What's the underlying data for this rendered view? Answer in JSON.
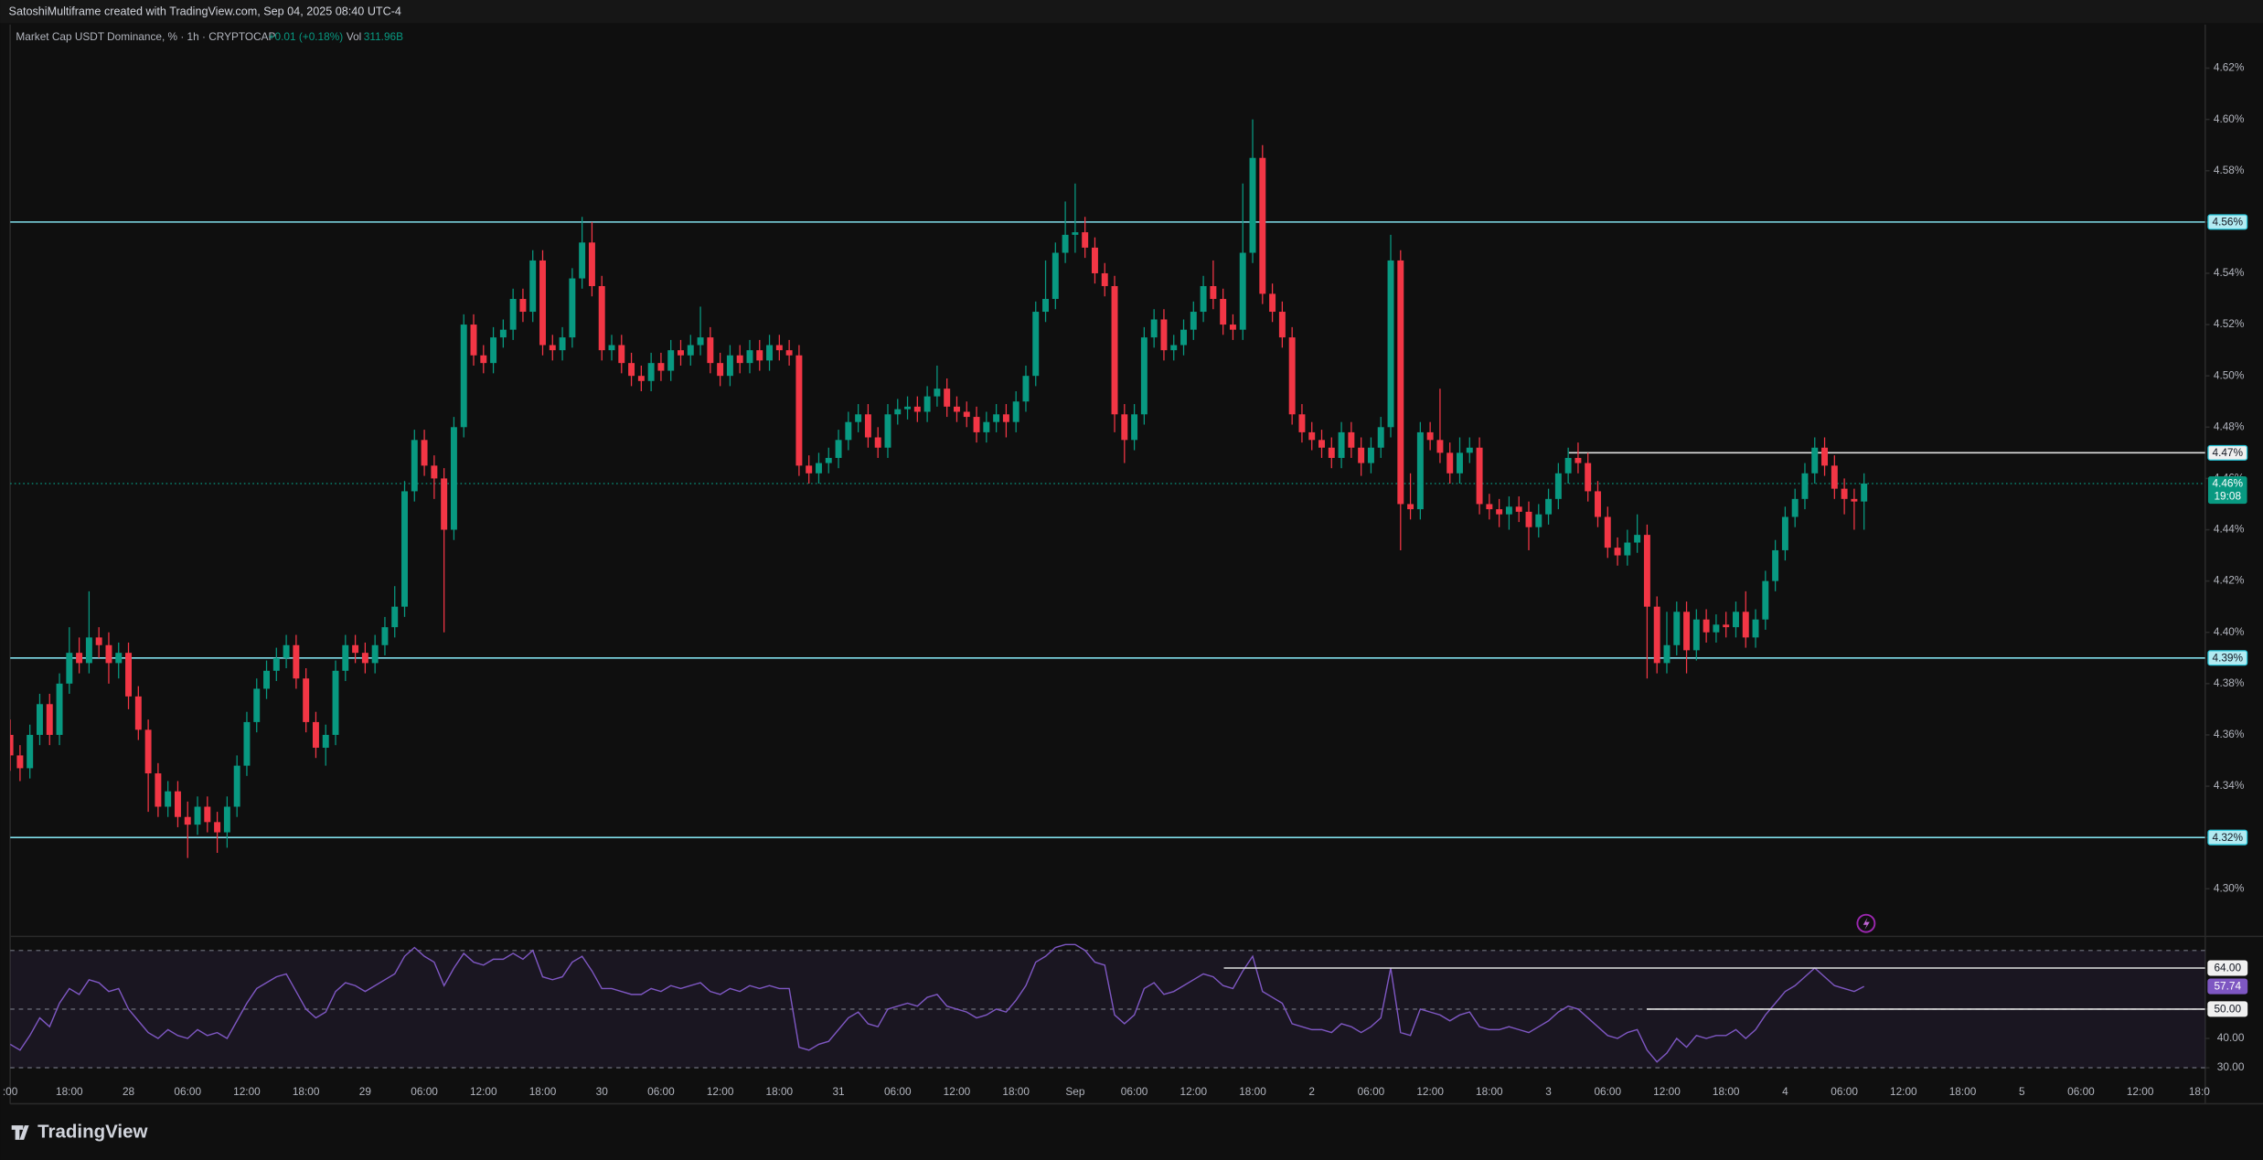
{
  "header": "SatoshiMultiframe created with TradingView.com, Sep 04, 2025 08:40 UTC-4",
  "footer": "TradingView",
  "chart_data": {
    "type": "candlestick",
    "legend": {
      "symbol": "Market Cap USDT Dominance, % · 1h · CRYPTOCAP",
      "change": "+0.01 (+0.18%)",
      "vol_label": "Vol",
      "vol": "311.96B"
    },
    "up_color": "#089981",
    "down_color": "#f23645",
    "categories": [
      ":00",
      null,
      null,
      null,
      null,
      null,
      "18:00",
      null,
      null,
      null,
      null,
      null,
      "28",
      null,
      null,
      null,
      null,
      null,
      "06:00",
      null,
      null,
      null,
      null,
      null,
      "12:00",
      null,
      null,
      null,
      null,
      null,
      "18:00",
      null,
      null,
      null,
      null,
      null,
      "29",
      null,
      null,
      null,
      null,
      null,
      "06:00",
      null,
      null,
      null,
      null,
      null,
      "12:00",
      null,
      null,
      null,
      null,
      null,
      "18:00",
      null,
      null,
      null,
      null,
      null,
      "30",
      null,
      null,
      null,
      null,
      null,
      "06:00",
      null,
      null,
      null,
      null,
      null,
      "12:00",
      null,
      null,
      null,
      null,
      null,
      "18:00",
      null,
      null,
      null,
      null,
      null,
      "31",
      null,
      null,
      null,
      null,
      null,
      "06:00",
      null,
      null,
      null,
      null,
      null,
      "12:00",
      null,
      null,
      null,
      null,
      null,
      "18:00",
      null,
      null,
      null,
      null,
      null,
      "Sep",
      null,
      null,
      null,
      null,
      null,
      "06:00",
      null,
      null,
      null,
      null,
      null,
      "12:00",
      null,
      null,
      null,
      null,
      null,
      "18:00",
      null,
      null,
      null,
      null,
      null,
      "2",
      null,
      null,
      null,
      null,
      null,
      "06:00",
      null,
      null,
      null,
      null,
      null,
      "12:00",
      null,
      null,
      null,
      null,
      null,
      "18:00",
      null,
      null,
      null,
      null,
      null,
      "3",
      null,
      null,
      null,
      null,
      null,
      "06:00",
      null,
      null,
      null,
      null,
      null,
      "12:00",
      null,
      null,
      null,
      null,
      null,
      "18:00",
      null,
      null,
      null,
      null,
      null,
      "4",
      null,
      null,
      null,
      null,
      null,
      "06:00",
      null,
      null,
      null,
      null,
      null,
      "12:00",
      null,
      null,
      null,
      null,
      null,
      "18:00",
      null,
      null,
      null,
      null,
      null,
      "5",
      null,
      null,
      null,
      null,
      null,
      "06:00",
      null,
      null,
      null,
      null,
      null,
      "12:00",
      null,
      null,
      null,
      null,
      null,
      "18:0"
    ],
    "open": [
      4.36,
      4.352,
      4.347,
      4.36,
      4.372,
      4.36,
      4.38,
      4.392,
      4.388,
      4.398,
      4.395,
      4.388,
      4.392,
      4.375,
      4.362,
      4.345,
      4.332,
      4.338,
      4.328,
      4.325,
      4.332,
      4.326,
      4.322,
      4.332,
      4.348,
      4.365,
      4.378,
      4.385,
      4.39,
      4.395,
      4.382,
      4.365,
      4.355,
      4.36,
      4.385,
      4.395,
      4.392,
      4.388,
      4.395,
      4.402,
      4.41,
      4.455,
      4.475,
      4.465,
      4.46,
      4.44,
      4.48,
      4.52,
      4.508,
      4.505,
      4.515,
      4.518,
      4.53,
      4.525,
      4.545,
      4.512,
      4.51,
      4.515,
      4.538,
      4.552,
      4.535,
      4.51,
      4.512,
      4.505,
      4.5,
      4.498,
      4.505,
      4.502,
      4.51,
      4.508,
      4.512,
      4.515,
      4.505,
      4.5,
      4.508,
      4.505,
      4.51,
      4.506,
      4.512,
      4.51,
      4.508,
      4.465,
      4.462,
      4.466,
      4.468,
      4.475,
      4.482,
      4.485,
      4.476,
      4.472,
      4.485,
      4.487,
      4.488,
      4.486,
      4.492,
      4.495,
      4.488,
      4.486,
      4.484,
      4.478,
      4.482,
      4.485,
      4.482,
      4.49,
      4.5,
      4.525,
      4.53,
      4.548,
      4.555,
      4.556,
      4.55,
      4.54,
      4.535,
      4.485,
      4.475,
      4.485,
      4.515,
      4.522,
      4.51,
      4.512,
      4.518,
      4.525,
      4.535,
      4.53,
      4.52,
      4.518,
      4.548,
      4.585,
      4.532,
      4.525,
      4.515,
      4.485,
      4.478,
      4.475,
      4.472,
      4.468,
      4.478,
      4.472,
      4.466,
      4.472,
      4.48,
      4.545,
      4.45,
      4.448,
      4.478,
      4.475,
      4.47,
      4.462,
      4.47,
      4.472,
      4.45,
      4.448,
      4.446,
      4.449,
      4.447,
      4.441,
      4.446,
      4.452,
      4.462,
      4.468,
      4.466,
      4.455,
      4.445,
      4.433,
      4.43,
      4.435,
      4.438,
      4.41,
      4.388,
      4.395,
      4.408,
      4.393,
      4.405,
      4.4,
      4.403,
      4.402,
      4.408,
      4.398,
      4.405,
      4.42,
      4.432,
      4.445,
      4.452,
      4.462,
      4.472,
      4.465,
      4.456,
      4.452,
      4.451,
      null,
      null,
      null,
      null,
      null,
      null,
      null,
      null,
      null,
      null,
      null,
      null,
      null,
      null,
      null,
      null,
      null,
      null,
      null,
      null,
      null,
      null,
      null,
      null,
      null,
      null,
      null,
      null,
      null,
      null,
      null,
      null,
      null,
      null
    ],
    "high": [
      4.366,
      4.356,
      4.364,
      4.376,
      4.376,
      4.384,
      4.402,
      4.398,
      4.416,
      4.402,
      4.4,
      4.396,
      4.396,
      4.379,
      4.366,
      4.349,
      4.342,
      4.342,
      4.334,
      4.336,
      4.336,
      4.33,
      4.336,
      4.352,
      4.369,
      4.382,
      4.389,
      4.394,
      4.399,
      4.399,
      4.386,
      4.369,
      4.364,
      4.389,
      4.399,
      4.399,
      4.396,
      4.399,
      4.406,
      4.418,
      4.459,
      4.479,
      4.479,
      4.469,
      4.464,
      4.484,
      4.524,
      4.524,
      4.512,
      4.519,
      4.522,
      4.534,
      4.534,
      4.549,
      4.549,
      4.516,
      4.519,
      4.542,
      4.562,
      4.56,
      4.539,
      4.516,
      4.516,
      4.509,
      4.504,
      4.509,
      4.509,
      4.514,
      4.514,
      4.516,
      4.527,
      4.519,
      4.509,
      4.512,
      4.512,
      4.514,
      4.514,
      4.516,
      4.516,
      4.514,
      4.512,
      4.469,
      4.47,
      4.472,
      4.479,
      4.486,
      4.489,
      4.489,
      4.48,
      4.489,
      4.491,
      4.492,
      4.492,
      4.496,
      4.504,
      4.499,
      4.492,
      4.49,
      4.488,
      4.486,
      4.489,
      4.489,
      4.494,
      4.504,
      4.529,
      4.545,
      4.552,
      4.568,
      4.575,
      4.562,
      4.554,
      4.544,
      4.539,
      4.489,
      4.489,
      4.519,
      4.526,
      4.526,
      4.516,
      4.522,
      4.529,
      4.539,
      4.545,
      4.534,
      4.524,
      4.575,
      4.6,
      4.59,
      4.536,
      4.529,
      4.519,
      4.489,
      4.482,
      4.479,
      4.476,
      4.482,
      4.482,
      4.476,
      4.476,
      4.484,
      4.555,
      4.549,
      4.462,
      4.482,
      4.482,
      4.495,
      4.474,
      4.476,
      4.476,
      4.476,
      4.454,
      4.452,
      4.453,
      4.453,
      4.451,
      4.45,
      4.456,
      4.466,
      4.472,
      4.474,
      4.47,
      4.459,
      4.449,
      4.437,
      4.44,
      4.446,
      4.442,
      4.414,
      4.408,
      4.412,
      4.412,
      4.409,
      4.409,
      4.407,
      4.408,
      4.412,
      4.416,
      4.409,
      4.424,
      4.436,
      4.449,
      4.456,
      4.466,
      4.476,
      4.476,
      4.469,
      4.46,
      4.456,
      4.462,
      null,
      null,
      null,
      null,
      null,
      null,
      null,
      null,
      null,
      null,
      null,
      null,
      null,
      null,
      null,
      null,
      null,
      null,
      null,
      null,
      null,
      null,
      null,
      null,
      null,
      null,
      null,
      null,
      null,
      null,
      null,
      null,
      null,
      null
    ],
    "low": [
      4.346,
      4.342,
      4.343,
      4.356,
      4.356,
      4.356,
      4.376,
      4.384,
      4.384,
      4.39,
      4.38,
      4.382,
      4.37,
      4.358,
      4.33,
      4.328,
      4.328,
      4.324,
      4.312,
      4.321,
      4.322,
      4.314,
      4.316,
      4.328,
      4.344,
      4.361,
      4.374,
      4.381,
      4.386,
      4.378,
      4.361,
      4.351,
      4.348,
      4.356,
      4.381,
      4.388,
      4.384,
      4.384,
      4.391,
      4.398,
      4.406,
      4.451,
      4.461,
      4.452,
      4.4,
      4.436,
      4.476,
      4.504,
      4.501,
      4.501,
      4.511,
      4.514,
      4.521,
      4.521,
      4.508,
      4.506,
      4.506,
      4.511,
      4.534,
      4.531,
      4.506,
      4.506,
      4.501,
      4.496,
      4.494,
      4.494,
      4.498,
      4.498,
      4.504,
      4.504,
      4.508,
      4.501,
      4.496,
      4.496,
      4.501,
      4.501,
      4.502,
      4.502,
      4.506,
      4.504,
      4.461,
      4.458,
      4.458,
      4.462,
      4.464,
      4.471,
      4.478,
      4.472,
      4.468,
      4.468,
      4.481,
      4.483,
      4.482,
      4.482,
      4.488,
      4.484,
      4.482,
      4.48,
      4.474,
      4.474,
      4.478,
      4.476,
      4.478,
      4.486,
      4.496,
      4.521,
      4.526,
      4.544,
      4.548,
      4.546,
      4.536,
      4.531,
      4.478,
      4.466,
      4.471,
      4.481,
      4.511,
      4.506,
      4.506,
      4.508,
      4.514,
      4.521,
      4.526,
      4.516,
      4.514,
      4.514,
      4.544,
      4.528,
      4.521,
      4.511,
      4.481,
      4.474,
      4.471,
      4.468,
      4.464,
      4.464,
      4.468,
      4.461,
      4.462,
      4.468,
      4.476,
      4.432,
      4.444,
      4.444,
      4.471,
      4.466,
      4.458,
      4.458,
      4.466,
      4.446,
      4.444,
      4.441,
      4.44,
      4.443,
      4.432,
      4.437,
      4.442,
      4.448,
      4.458,
      4.462,
      4.451,
      4.441,
      4.429,
      4.426,
      4.426,
      4.431,
      4.382,
      4.384,
      4.384,
      4.391,
      4.384,
      4.389,
      4.396,
      4.396,
      4.398,
      4.398,
      4.394,
      4.394,
      4.401,
      4.416,
      4.428,
      4.441,
      4.448,
      4.458,
      4.461,
      4.452,
      4.446,
      4.44,
      4.44,
      null,
      null,
      null,
      null,
      null,
      null,
      null,
      null,
      null,
      null,
      null,
      null,
      null,
      null,
      null,
      null,
      null,
      null,
      null,
      null,
      null,
      null,
      null,
      null,
      null,
      null,
      null,
      null,
      null,
      null,
      null,
      null,
      null,
      null
    ],
    "close": [
      4.352,
      4.347,
      4.36,
      4.372,
      4.36,
      4.38,
      4.392,
      4.388,
      4.398,
      4.395,
      4.388,
      4.392,
      4.375,
      4.362,
      4.345,
      4.332,
      4.338,
      4.328,
      4.325,
      4.332,
      4.326,
      4.322,
      4.332,
      4.348,
      4.365,
      4.378,
      4.385,
      4.39,
      4.395,
      4.382,
      4.365,
      4.355,
      4.36,
      4.385,
      4.395,
      4.392,
      4.388,
      4.395,
      4.402,
      4.41,
      4.455,
      4.475,
      4.465,
      4.46,
      4.44,
      4.48,
      4.52,
      4.508,
      4.505,
      4.515,
      4.518,
      4.53,
      4.525,
      4.545,
      4.512,
      4.51,
      4.515,
      4.538,
      4.552,
      4.535,
      4.51,
      4.512,
      4.505,
      4.5,
      4.498,
      4.505,
      4.502,
      4.51,
      4.508,
      4.512,
      4.515,
      4.505,
      4.5,
      4.508,
      4.505,
      4.51,
      4.506,
      4.512,
      4.51,
      4.508,
      4.465,
      4.462,
      4.466,
      4.468,
      4.475,
      4.482,
      4.485,
      4.476,
      4.472,
      4.485,
      4.487,
      4.488,
      4.486,
      4.492,
      4.495,
      4.488,
      4.486,
      4.484,
      4.478,
      4.482,
      4.485,
      4.482,
      4.49,
      4.5,
      4.525,
      4.53,
      4.548,
      4.555,
      4.556,
      4.55,
      4.54,
      4.535,
      4.485,
      4.475,
      4.485,
      4.515,
      4.522,
      4.51,
      4.512,
      4.518,
      4.525,
      4.535,
      4.53,
      4.52,
      4.518,
      4.548,
      4.585,
      4.532,
      4.525,
      4.515,
      4.485,
      4.478,
      4.475,
      4.472,
      4.468,
      4.478,
      4.472,
      4.466,
      4.472,
      4.48,
      4.545,
      4.45,
      4.448,
      4.478,
      4.475,
      4.47,
      4.462,
      4.47,
      4.472,
      4.45,
      4.448,
      4.446,
      4.449,
      4.447,
      4.441,
      4.446,
      4.452,
      4.462,
      4.468,
      4.466,
      4.455,
      4.445,
      4.433,
      4.43,
      4.435,
      4.438,
      4.41,
      4.388,
      4.395,
      4.408,
      4.393,
      4.405,
      4.4,
      4.403,
      4.402,
      4.408,
      4.398,
      4.405,
      4.42,
      4.432,
      4.445,
      4.452,
      4.462,
      4.472,
      4.465,
      4.456,
      4.452,
      4.451,
      4.458,
      null,
      null,
      null,
      null,
      null,
      null,
      null,
      null,
      null,
      null,
      null,
      null,
      null,
      null,
      null,
      null,
      null,
      null,
      null,
      null,
      null,
      null,
      null,
      null,
      null,
      null,
      null,
      null,
      null,
      null,
      null,
      null,
      null,
      null
    ],
    "ylim": [
      4.282,
      4.637
    ],
    "yticks": [
      {
        "value": 4.3,
        "label": "4.30%"
      },
      {
        "value": 4.32,
        "label": "4.32%"
      },
      {
        "value": 4.34,
        "label": "4.34%"
      },
      {
        "value": 4.36,
        "label": "4.36%"
      },
      {
        "value": 4.38,
        "label": "4.38%"
      },
      {
        "value": 4.4,
        "label": "4.40%"
      },
      {
        "value": 4.42,
        "label": "4.42%"
      },
      {
        "value": 4.44,
        "label": "4.44%"
      },
      {
        "value": 4.46,
        "label": "4.46%"
      },
      {
        "value": 4.48,
        "label": "4.48%"
      },
      {
        "value": 4.5,
        "label": "4.50%"
      },
      {
        "value": 4.52,
        "label": "4.52%"
      },
      {
        "value": 4.54,
        "label": "4.54%"
      },
      {
        "value": 4.56,
        "label": "4.56%"
      },
      {
        "value": 4.58,
        "label": "4.58%"
      },
      {
        "value": 4.6,
        "label": "4.60%"
      },
      {
        "value": 4.62,
        "label": "4.62%"
      }
    ],
    "levels": [
      {
        "value": 4.56,
        "label": "4.56%"
      },
      {
        "value": 4.47,
        "label": "4.47%"
      },
      {
        "value": 4.39,
        "label": "4.39%"
      },
      {
        "value": 4.32,
        "label": "4.32%"
      }
    ],
    "last_price": {
      "value": 4.458,
      "label": "4.46%",
      "countdown": "19:08"
    },
    "rsi": {
      "color": "#7e57c2",
      "values": [
        38,
        36,
        41,
        47,
        44,
        52,
        57,
        55,
        60,
        59,
        56,
        57,
        50,
        46,
        42,
        40,
        43,
        41,
        40,
        43,
        41,
        42,
        40,
        46,
        52,
        57,
        59,
        61,
        62,
        56,
        50,
        47,
        49,
        56,
        59,
        58,
        56,
        58,
        60,
        62,
        68,
        71,
        68,
        66,
        58,
        64,
        69,
        66,
        65,
        67,
        67,
        69,
        67,
        70,
        61,
        60,
        61,
        66,
        68,
        63,
        57,
        57,
        56,
        55,
        55,
        57,
        56,
        58,
        57,
        58,
        59,
        56,
        55,
        57,
        56,
        58,
        57,
        58,
        57,
        57,
        37,
        36,
        38,
        39,
        43,
        47,
        49,
        45,
        44,
        50,
        51,
        52,
        51,
        54,
        55,
        51,
        50,
        49,
        47,
        48,
        50,
        49,
        53,
        58,
        66,
        68,
        71,
        72,
        72,
        70,
        66,
        65,
        48,
        45,
        48,
        57,
        59,
        55,
        56,
        58,
        60,
        62,
        61,
        58,
        57,
        63,
        68,
        56,
        54,
        52,
        45,
        44,
        43,
        43,
        42,
        45,
        44,
        42,
        44,
        47,
        64,
        42,
        41,
        50,
        49,
        48,
        46,
        48,
        49,
        44,
        43,
        43,
        44,
        43,
        42,
        44,
        46,
        49,
        51,
        50,
        47,
        44,
        41,
        40,
        42,
        43,
        36,
        32,
        35,
        40,
        37,
        41,
        40,
        41,
        41,
        43,
        40,
        43,
        48,
        52,
        56,
        58,
        61,
        64,
        61,
        58,
        57,
        56,
        57.74,
        null,
        null,
        null,
        null,
        null,
        null,
        null,
        null,
        null,
        null,
        null,
        null,
        null,
        null,
        null,
        null,
        null,
        null,
        null,
        null,
        null,
        null,
        null,
        null,
        null,
        null,
        null,
        null,
        null,
        null,
        null,
        null,
        null,
        null
      ],
      "ylim": [
        26.1,
        74.3
      ],
      "yticks": [
        {
          "value": 30,
          "label": "30.00"
        },
        {
          "value": 40,
          "label": "40.00"
        },
        {
          "value": 50,
          "label": "50.00"
        }
      ],
      "bands": [
        70,
        50,
        30
      ],
      "levels": [
        {
          "value": 64,
          "label": "64.00"
        },
        {
          "value": 50,
          "label": "50.00"
        }
      ]
    }
  }
}
